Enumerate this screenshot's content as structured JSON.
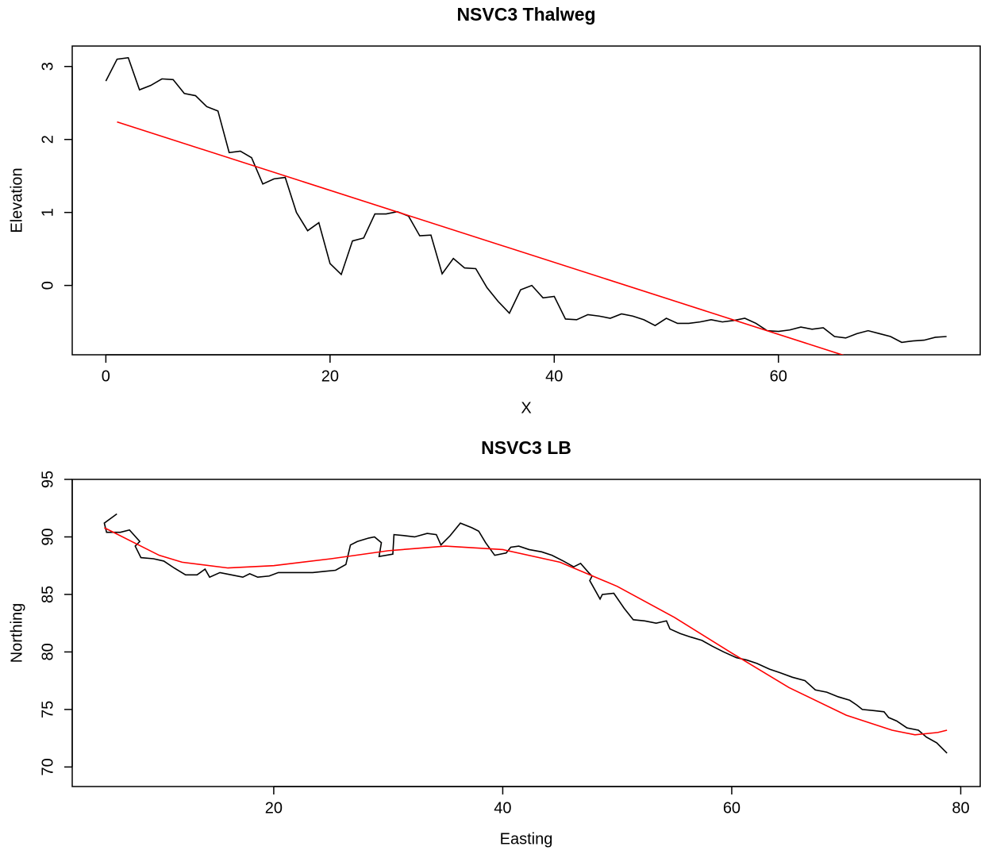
{
  "chart_data": [
    {
      "type": "line",
      "title": "NSVC3 Thalweg",
      "x_label": "X",
      "y_label": "Elevation",
      "xlim": [
        -3,
        78
      ],
      "ylim": [
        -0.95,
        3.28
      ],
      "xticks": [
        0,
        20,
        40,
        60
      ],
      "yticks": [
        0,
        1,
        2,
        3
      ],
      "series": [
        {
          "color": "#000000",
          "x": [
            0,
            1,
            2,
            3,
            4,
            5,
            6,
            7,
            8,
            9,
            10,
            11,
            12,
            13,
            14,
            15,
            16,
            17,
            18,
            19,
            20,
            21,
            22,
            23,
            24,
            25,
            26,
            27,
            28,
            29,
            30,
            31,
            32,
            33,
            34,
            35,
            36,
            37,
            38,
            39,
            40,
            41,
            42,
            43,
            44,
            45,
            46,
            47,
            48,
            49,
            50,
            51,
            52,
            53,
            54,
            55,
            56,
            57,
            58,
            59,
            60,
            61,
            62,
            63,
            64,
            65,
            66,
            67,
            68,
            69,
            70,
            71,
            72,
            73,
            74,
            75
          ],
          "values": [
            2.8,
            3.1,
            3.12,
            2.68,
            2.74,
            2.83,
            2.82,
            2.63,
            2.6,
            2.45,
            2.39,
            1.82,
            1.84,
            1.75,
            1.39,
            1.46,
            1.48,
            1.0,
            0.75,
            0.86,
            0.3,
            0.15,
            0.61,
            0.65,
            0.98,
            0.98,
            1.01,
            0.95,
            0.68,
            0.69,
            0.16,
            0.37,
            0.24,
            0.23,
            -0.03,
            -0.22,
            -0.38,
            -0.06,
            0.0,
            -0.17,
            -0.15,
            -0.46,
            -0.47,
            -0.4,
            -0.42,
            -0.45,
            -0.39,
            -0.42,
            -0.47,
            -0.55,
            -0.45,
            -0.52,
            -0.52,
            -0.5,
            -0.47,
            -0.5,
            -0.48,
            -0.45,
            -0.52,
            -0.62,
            -0.63,
            -0.61,
            -0.57,
            -0.6,
            -0.58,
            -0.7,
            -0.72,
            -0.66,
            -0.62,
            -0.66,
            -0.7,
            -0.78,
            -0.76,
            -0.75,
            -0.71,
            -0.7
          ]
        },
        {
          "color": "#ff0000",
          "x": [
            1,
            75
          ],
          "values": [
            2.24,
            -1.41
          ]
        }
      ]
    },
    {
      "type": "line",
      "title": "NSVC3 LB",
      "x_label": "Easting",
      "y_label": "Northing",
      "xlim": [
        2.4,
        81.7
      ],
      "ylim": [
        68.3,
        95
      ],
      "xticks": [
        20,
        40,
        60,
        80
      ],
      "yticks": [
        70,
        75,
        80,
        85,
        90,
        95
      ],
      "series": [
        {
          "color": "#000000",
          "x": [
            6.3,
            5.2,
            5.4,
            6.6,
            7.4,
            8.3,
            7.9,
            8.4,
            9.5,
            10.4,
            11.3,
            12.3,
            13.3,
            14.0,
            14.4,
            15.3,
            16.3,
            17.3,
            17.9,
            18.6,
            19.6,
            20.4,
            22.3,
            23.4,
            24.4,
            25.4,
            26.3,
            26.7,
            27.3,
            28.3,
            28.8,
            29.4,
            29.2,
            30.4,
            30.5,
            31.5,
            32.3,
            33.4,
            34.2,
            34.6,
            35.4,
            36.3,
            37.3,
            37.9,
            38.5,
            39.3,
            40.3,
            40.7,
            41.4,
            42.3,
            43.4,
            44.3,
            45.3,
            46.2,
            46.8,
            47.5,
            47.8,
            47.6,
            48.5,
            48.7,
            49.7,
            50.6,
            51.4,
            52.4,
            53.4,
            54.3,
            54.6,
            55.5,
            56.4,
            57.4,
            58.3,
            59.3,
            60.4,
            61.3,
            62.2,
            63.3,
            64.2,
            65.3,
            66.4,
            67.3,
            68.3,
            69.3,
            70.3,
            70.9,
            71.4,
            72.4,
            73.3,
            73.7,
            74.4,
            75.3,
            76.3,
            77.0,
            77.9,
            78.8
          ],
          "values": [
            92.0,
            91.2,
            90.4,
            90.4,
            90.6,
            89.6,
            89.2,
            88.2,
            88.1,
            87.9,
            87.3,
            86.7,
            86.7,
            87.2,
            86.5,
            86.9,
            86.7,
            86.5,
            86.8,
            86.5,
            86.6,
            86.9,
            86.9,
            86.9,
            87.0,
            87.1,
            87.6,
            89.3,
            89.6,
            89.9,
            90.0,
            89.5,
            88.3,
            88.5,
            90.2,
            90.1,
            90.0,
            90.3,
            90.2,
            89.3,
            90.1,
            91.2,
            90.8,
            90.5,
            89.5,
            88.4,
            88.6,
            89.1,
            89.2,
            88.9,
            88.7,
            88.4,
            87.9,
            87.4,
            87.7,
            86.9,
            86.6,
            86.2,
            84.6,
            85.0,
            85.1,
            83.8,
            82.8,
            82.7,
            82.5,
            82.7,
            82.0,
            81.6,
            81.3,
            81.0,
            80.5,
            80.0,
            79.5,
            79.3,
            79.0,
            78.5,
            78.2,
            77.8,
            77.5,
            76.7,
            76.5,
            76.1,
            75.8,
            75.4,
            75.0,
            74.9,
            74.8,
            74.3,
            74.0,
            73.4,
            73.2,
            72.6,
            72.1,
            71.2
          ]
        },
        {
          "color": "#ff0000",
          "x": [
            5.2,
            8,
            10,
            12,
            16,
            20,
            25,
            30,
            35,
            40,
            45,
            50,
            55,
            60,
            65,
            70,
            74,
            76,
            78,
            78.8
          ],
          "values": [
            90.8,
            89.4,
            88.4,
            87.8,
            87.3,
            87.5,
            88.1,
            88.8,
            89.2,
            88.9,
            87.8,
            85.7,
            83.0,
            79.9,
            76.9,
            74.5,
            73.2,
            72.8,
            73.0,
            73.2
          ]
        }
      ]
    }
  ]
}
